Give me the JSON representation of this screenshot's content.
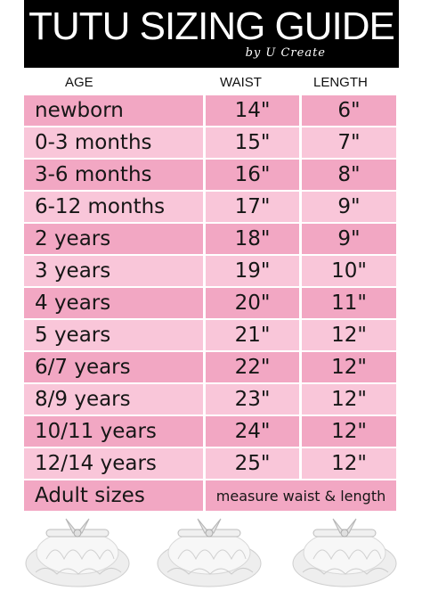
{
  "header": {
    "title": "TUTU SIZING GUIDE",
    "subtitle": "by U Create"
  },
  "columns": {
    "age": "AGE",
    "waist": "WAIST",
    "length": "LENGTH"
  },
  "rows": [
    {
      "age": "newborn",
      "waist": "14\"",
      "length": "6\""
    },
    {
      "age": "0-3 months",
      "waist": "15\"",
      "length": "7\""
    },
    {
      "age": "3-6 months",
      "waist": "16\"",
      "length": "8\""
    },
    {
      "age": "6-12 months",
      "waist": "17\"",
      "length": "9\""
    },
    {
      "age": "2 years",
      "waist": "18\"",
      "length": "9\""
    },
    {
      "age": "3 years",
      "waist": "19\"",
      "length": "10\""
    },
    {
      "age": "4 years",
      "waist": "20\"",
      "length": "11\""
    },
    {
      "age": "5 years",
      "waist": "21\"",
      "length": "12\""
    },
    {
      "age": "6/7 years",
      "waist": "22\"",
      "length": "12\""
    },
    {
      "age": "8/9 years",
      "waist": "23\"",
      "length": "12\""
    },
    {
      "age": "10/11 years",
      "waist": "24\"",
      "length": "12\""
    },
    {
      "age": "12/14 years",
      "waist": "25\"",
      "length": "12\""
    }
  ],
  "adult": {
    "age": "Adult sizes",
    "note": "measure waist & length"
  },
  "colors": {
    "header_bg": "#000000",
    "row_dark": "#f2a7c3",
    "row_light": "#f9c6d9"
  },
  "images": [
    "tutu-image",
    "tutu-image",
    "tutu-image"
  ]
}
